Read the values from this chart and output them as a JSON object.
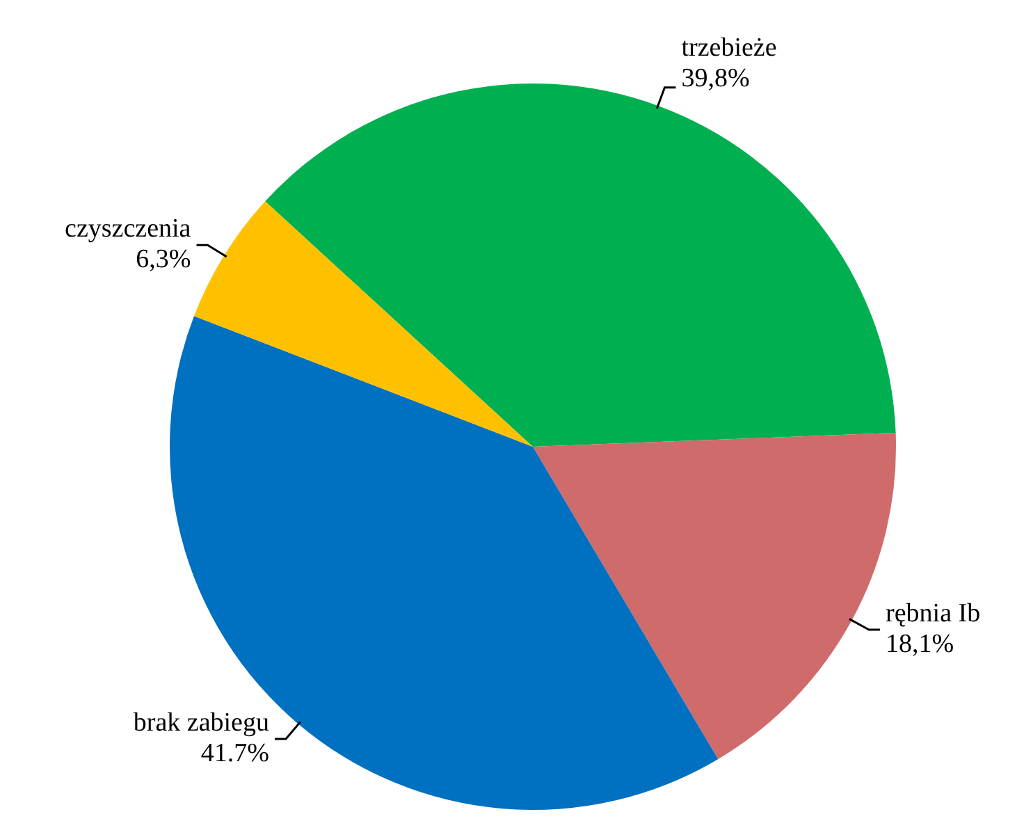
{
  "chart_data": {
    "type": "pie",
    "categories": [
      "trzebieże",
      "rębnia Ib",
      "brak zabiegu",
      "czyszczenia"
    ],
    "values": [
      39.8,
      18.1,
      41.7,
      6.3
    ],
    "colors": [
      "#00b050",
      "#d06b6b",
      "#0070c0",
      "#ffc000"
    ],
    "value_labels": [
      "39,8%",
      "18,1%",
      "41.7%",
      "6,3%"
    ],
    "legend": false
  }
}
